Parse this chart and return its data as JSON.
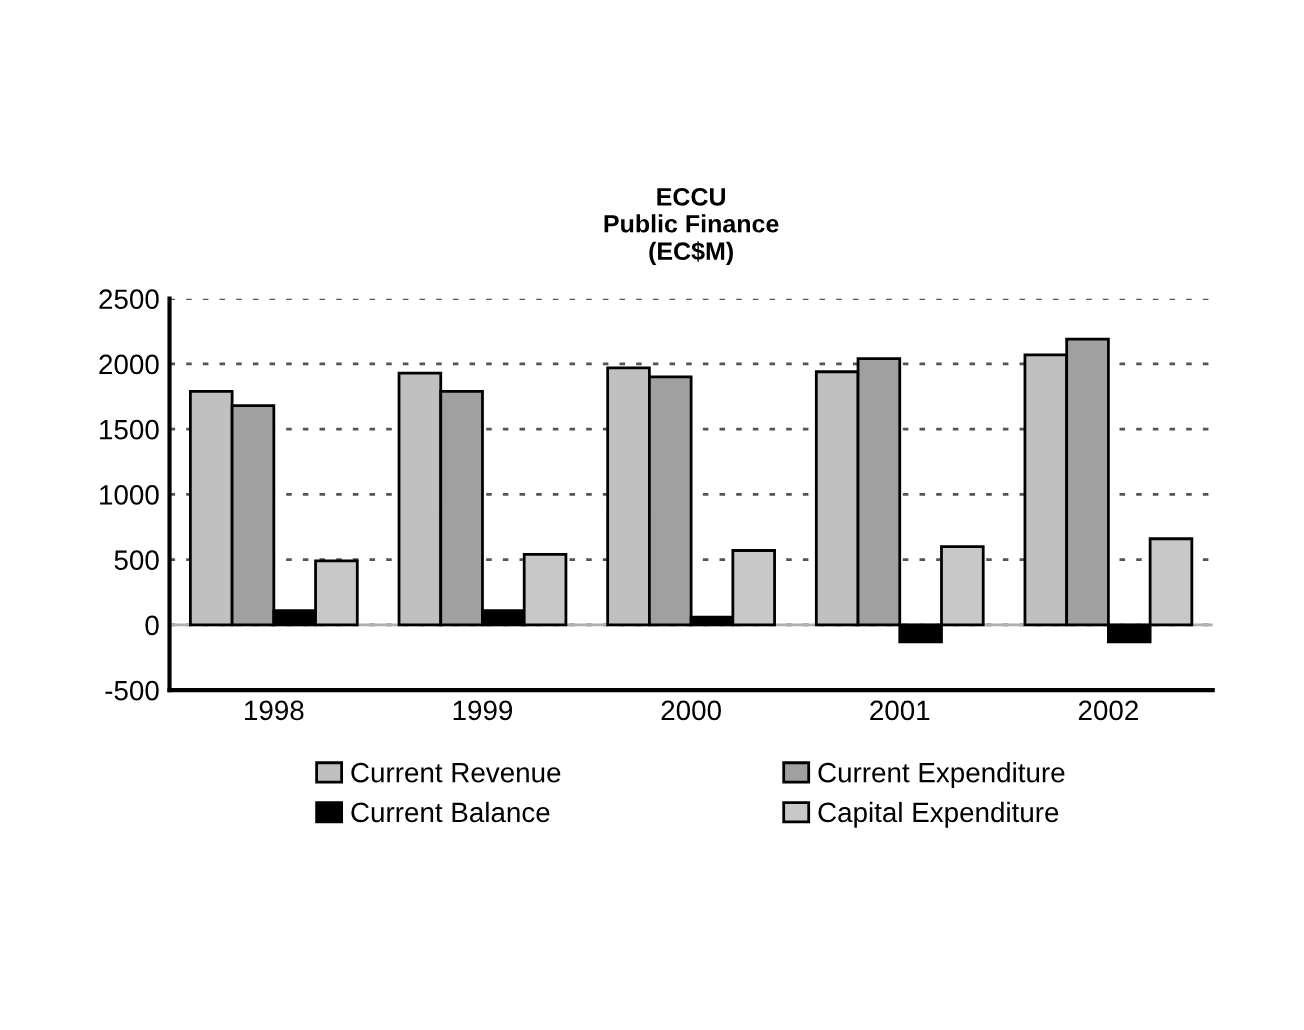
{
  "chart_data": {
    "type": "bar",
    "title": "ECCU\nPublic Finance\n(EC$M)",
    "categories": [
      "1998",
      "1999",
      "2000",
      "2001",
      "2002"
    ],
    "series": [
      {
        "name": "Current Revenue",
        "color": "#c0c0c0",
        "values": [
          1790,
          1930,
          1970,
          1940,
          2070
        ]
      },
      {
        "name": "Current Expenditure",
        "color": "#a0a0a0",
        "values": [
          1680,
          1790,
          1900,
          2040,
          2190
        ]
      },
      {
        "name": "Current Balance",
        "color": "#000000",
        "values": [
          110,
          110,
          60,
          -130,
          -130
        ]
      },
      {
        "name": "Capital Expenditure",
        "color": "#c8c8c8",
        "values": [
          490,
          540,
          570,
          600,
          660
        ]
      }
    ],
    "ylim": [
      -500,
      2500
    ],
    "yticks": [
      -500,
      0,
      500,
      1000,
      1500,
      2000,
      2500
    ],
    "grid": "y",
    "legend": "bottom"
  }
}
